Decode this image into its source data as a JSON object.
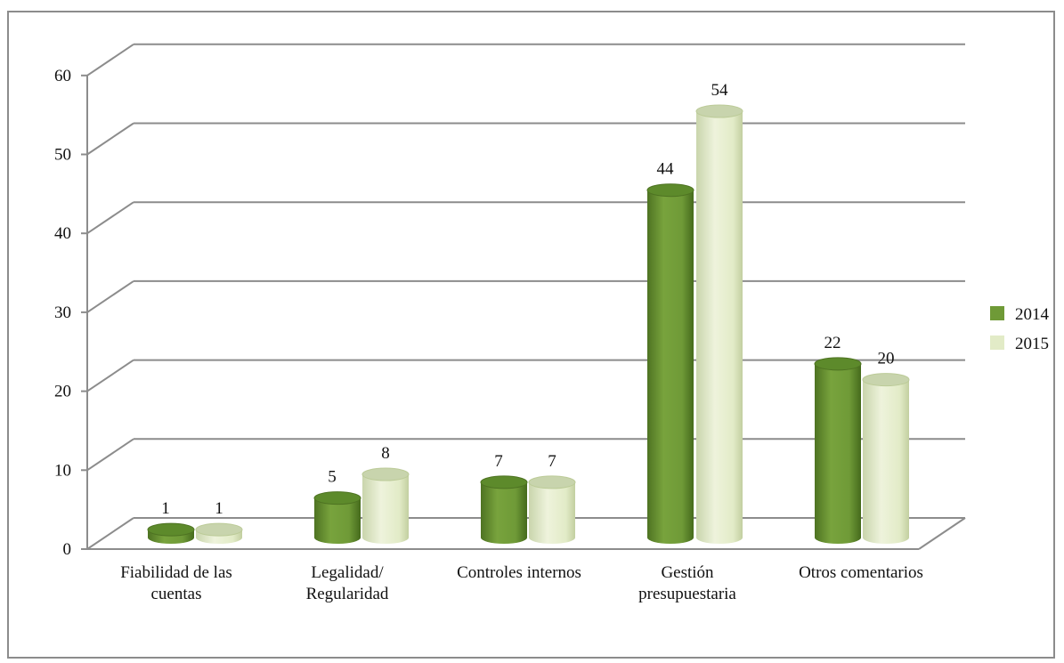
{
  "chart_data": {
    "type": "bar",
    "categories": [
      [
        "Fiabilidad de las",
        "cuentas"
      ],
      [
        "Legalidad/",
        "Regularidad"
      ],
      [
        "Controles internos"
      ],
      [
        "Gestión",
        "presupuestaria"
      ],
      [
        "Otros comentarios"
      ]
    ],
    "series": [
      {
        "name": "2014",
        "values": [
          1,
          5,
          7,
          44,
          22
        ]
      },
      {
        "name": "2015",
        "values": [
          1,
          8,
          7,
          54,
          20
        ]
      }
    ],
    "ylim": [
      0,
      60
    ],
    "yticks": [
      0,
      10,
      20,
      30,
      40,
      50,
      60
    ],
    "grid": true,
    "legend": "right",
    "data_labels": true,
    "title": "",
    "xlabel": "",
    "ylabel": ""
  },
  "colors": {
    "series": [
      "#6f9a37",
      "#e2ebc7"
    ],
    "series_dark": [
      "#4e7322",
      "#bccb98"
    ],
    "series_top": [
      "#5d8a2b",
      "#c8d4ad"
    ],
    "grid": "#8c8c8c"
  }
}
